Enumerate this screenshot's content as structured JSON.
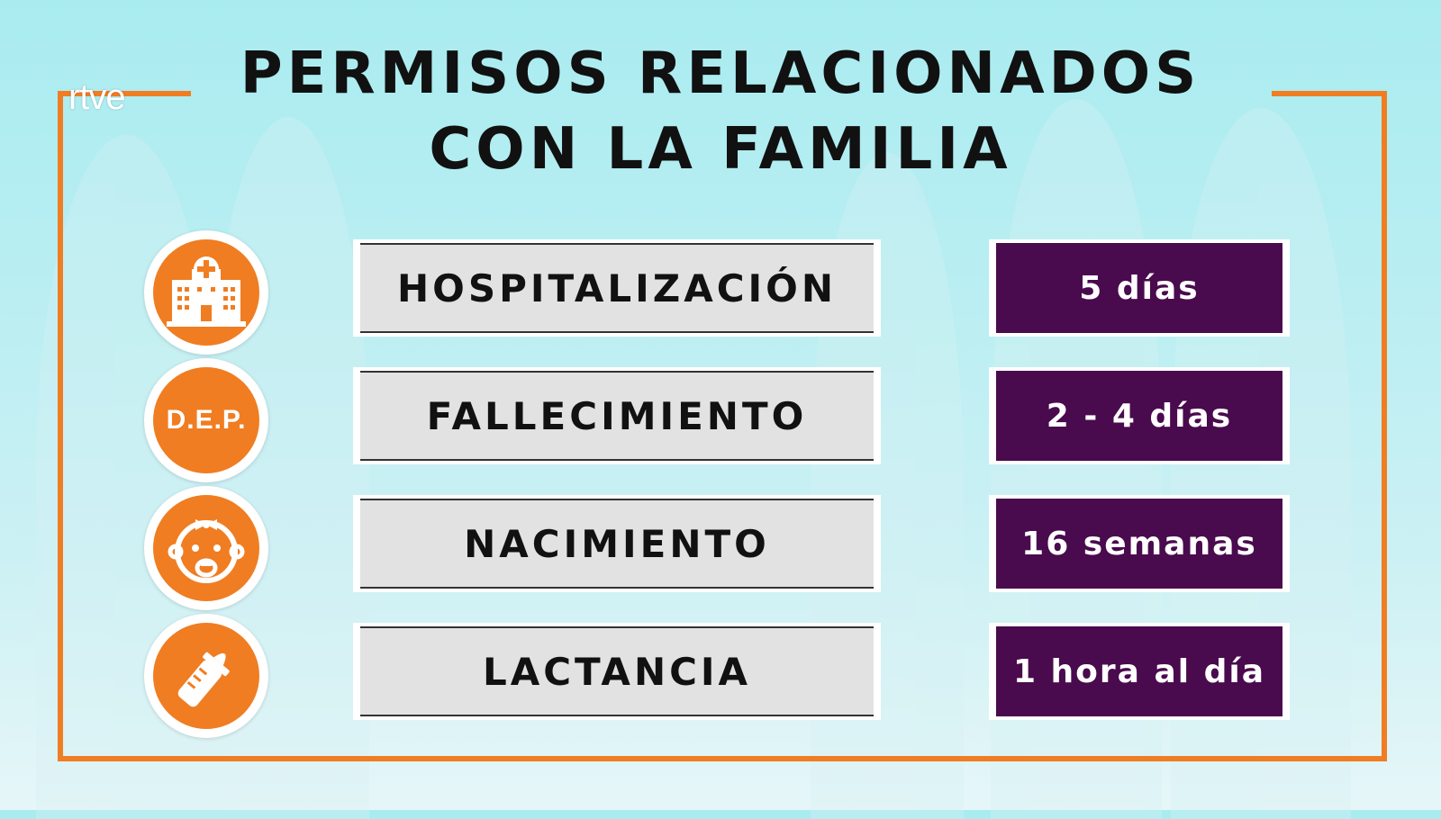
{
  "brand": {
    "logo_text": "rtve"
  },
  "title": {
    "line1": "PERMISOS RELACIONADOS",
    "line2": "CON LA FAMILIA"
  },
  "rows": [
    {
      "label": "HOSPITALIZACIÓN",
      "value": "5 días",
      "icon": "hospital-icon"
    },
    {
      "label": "FALLECIMIENTO",
      "value": "2 - 4 días",
      "icon": "dep-icon",
      "icon_text": "D.E.P."
    },
    {
      "label": "NACIMIENTO",
      "value": "16 semanas",
      "icon": "baby-icon"
    },
    {
      "label": "LACTANCIA",
      "value": "1 hora al día",
      "icon": "baby-bottle-icon"
    }
  ],
  "colors": {
    "accent": "#f07d22",
    "value_bg": "#4a0a4e",
    "label_bg": "#e2e2e2",
    "background": "#b9eef2"
  }
}
